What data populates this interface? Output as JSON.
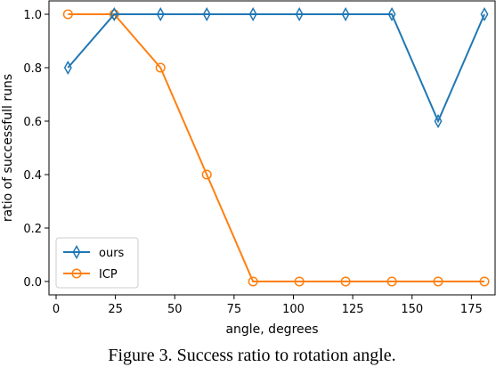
{
  "caption": "Figure 3. Success ratio to rotation angle.",
  "chart_data": {
    "type": "line",
    "title": "",
    "xlabel": "angle, degrees",
    "ylabel": "ratio of successfull runs",
    "xlim": [
      -3,
      185
    ],
    "ylim": [
      -0.05,
      1.05
    ],
    "xticks": [
      0,
      25,
      50,
      75,
      100,
      125,
      150,
      175
    ],
    "yticks": [
      0.0,
      0.2,
      0.4,
      0.6,
      0.8,
      1.0
    ],
    "ytick_labels": [
      "0.0",
      "0.2",
      "0.4",
      "0.6",
      "0.8",
      "1.0"
    ],
    "x": [
      5,
      24.5,
      44,
      63.5,
      83,
      102.5,
      122,
      141.5,
      161,
      180.5
    ],
    "series": [
      {
        "name": "ours",
        "color": "#1f77b4",
        "marker": "thin_diamond",
        "values": [
          0.8,
          1.0,
          1.0,
          1.0,
          1.0,
          1.0,
          1.0,
          1.0,
          0.6,
          1.0
        ]
      },
      {
        "name": "ICP",
        "color": "#ff7f0e",
        "marker": "circle",
        "values": [
          1.0,
          1.0,
          0.8,
          0.4,
          0.0,
          0.0,
          0.0,
          0.0,
          0.0,
          0.0
        ]
      }
    ],
    "grid": false,
    "legend_position": "lower-left"
  }
}
